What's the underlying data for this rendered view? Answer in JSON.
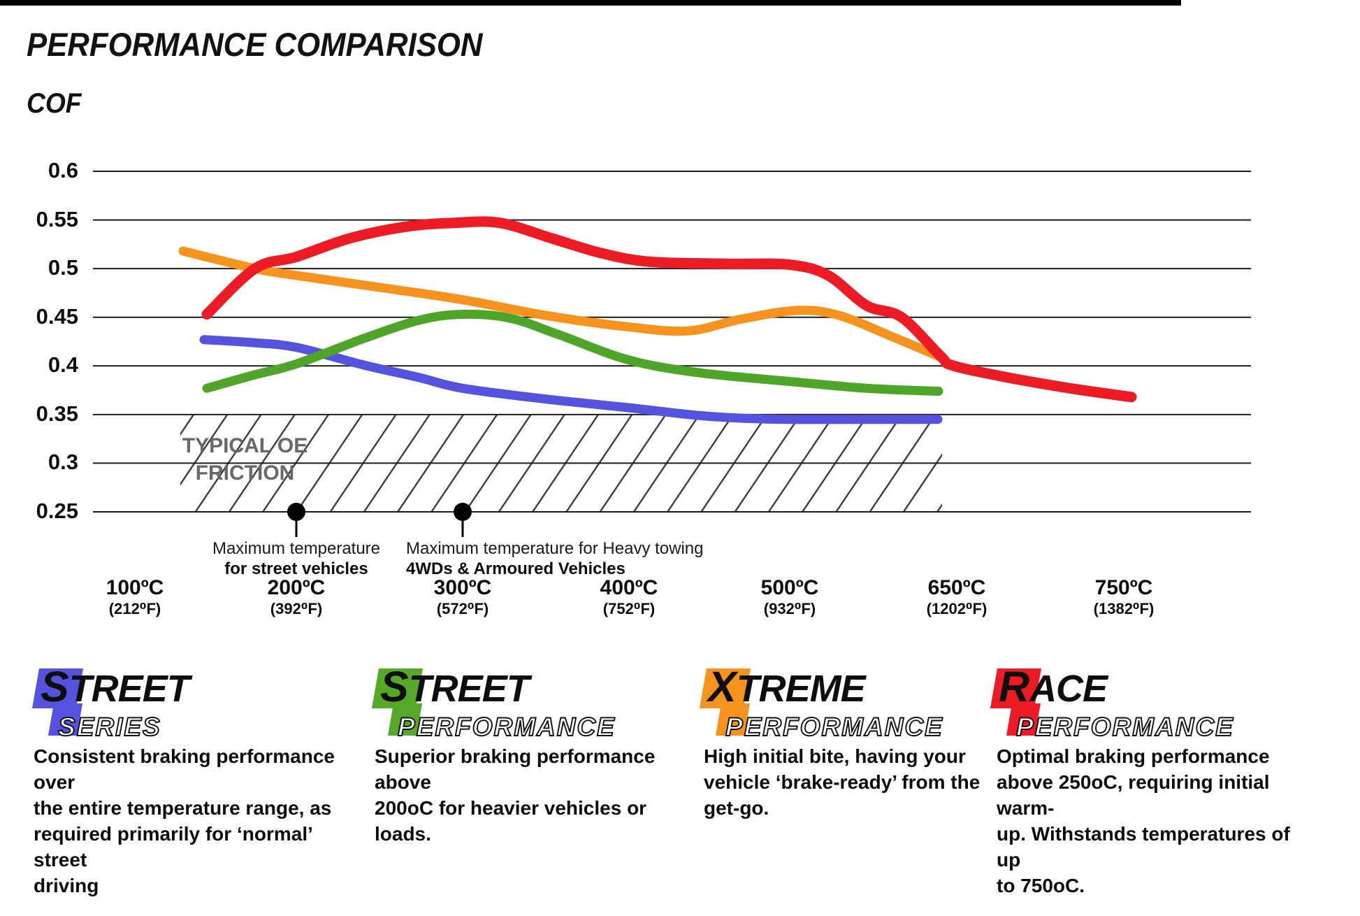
{
  "page": {
    "title": "PERFORMANCE COMPARISON",
    "axis_title": "COF"
  },
  "chart_data": {
    "type": "line",
    "title": "PERFORMANCE COMPARISON",
    "ylabel": "COF",
    "xlabel": "",
    "ylim": [
      0.25,
      0.6
    ],
    "grid": "horizontal",
    "y_ticks": [
      "0.6",
      "0.55",
      "0.5",
      "0.45",
      "0.4",
      "0.35",
      "0.3",
      "0.25"
    ],
    "x_ticks": [
      {
        "label": "100ºC",
        "sub": "(212⁰F)"
      },
      {
        "label": "200ºC",
        "sub": "(392⁰F)"
      },
      {
        "label": "300ºC",
        "sub": "(572⁰F)"
      },
      {
        "label": "400ºC",
        "sub": "(752⁰F)"
      },
      {
        "label": "500ºC",
        "sub": "(932⁰F)"
      },
      {
        "label": "650ºC",
        "sub": "(1202⁰F)"
      },
      {
        "label": "750ºC",
        "sub": "(1382⁰F)"
      }
    ],
    "series": [
      {
        "name": "Street Series",
        "color": "#5552dd",
        "stroke_width": 13,
        "points": [
          [
            292,
            0.427
          ],
          [
            360,
            0.424
          ],
          [
            424,
            0.419
          ],
          [
            520,
            0.401
          ],
          [
            600,
            0.388
          ],
          [
            662,
            0.377
          ],
          [
            780,
            0.366
          ],
          [
            900,
            0.357
          ],
          [
            1000,
            0.349
          ],
          [
            1070,
            0.346
          ],
          [
            1130,
            0.345
          ],
          [
            1250,
            0.345
          ],
          [
            1342,
            0.345
          ]
        ]
      },
      {
        "name": "Street Performance",
        "color": "#4fa52a",
        "stroke_width": 13,
        "points": [
          [
            296,
            0.377
          ],
          [
            360,
            0.39
          ],
          [
            424,
            0.402
          ],
          [
            520,
            0.428
          ],
          [
            600,
            0.447
          ],
          [
            662,
            0.453
          ],
          [
            730,
            0.449
          ],
          [
            800,
            0.432
          ],
          [
            900,
            0.406
          ],
          [
            1000,
            0.393
          ],
          [
            1130,
            0.384
          ],
          [
            1240,
            0.377
          ],
          [
            1343,
            0.374
          ]
        ]
      },
      {
        "name": "Xtreme Performance",
        "color": "#f6921e",
        "stroke_width": 13,
        "points": [
          [
            262,
            0.518
          ],
          [
            365,
            0.5
          ],
          [
            424,
            0.493
          ],
          [
            550,
            0.48
          ],
          [
            662,
            0.468
          ],
          [
            780,
            0.452
          ],
          [
            900,
            0.44
          ],
          [
            985,
            0.436
          ],
          [
            1060,
            0.448
          ],
          [
            1140,
            0.457
          ],
          [
            1200,
            0.452
          ],
          [
            1280,
            0.429
          ],
          [
            1346,
            0.409
          ]
        ]
      },
      {
        "name": "Race Performance",
        "color": "#ed1c24",
        "stroke_width": 15,
        "points": [
          [
            296,
            0.453
          ],
          [
            365,
            0.5
          ],
          [
            424,
            0.512
          ],
          [
            500,
            0.531
          ],
          [
            580,
            0.543
          ],
          [
            650,
            0.547
          ],
          [
            715,
            0.547
          ],
          [
            790,
            0.531
          ],
          [
            860,
            0.516
          ],
          [
            930,
            0.507
          ],
          [
            1040,
            0.505
          ],
          [
            1130,
            0.504
          ],
          [
            1185,
            0.493
          ],
          [
            1240,
            0.462
          ],
          [
            1290,
            0.45
          ],
          [
            1346,
            0.41
          ],
          [
            1365,
            0.4
          ],
          [
            1450,
            0.387
          ],
          [
            1540,
            0.376
          ],
          [
            1619,
            0.368
          ]
        ]
      }
    ],
    "oe_band": {
      "label": "TYPICAL OE\nFRICTION",
      "value_from": 0.25,
      "value_to": 0.35
    },
    "annotations": [
      {
        "line1": "Maximum temperature",
        "line2": "for street vehicles",
        "at_tick": "200ºC"
      },
      {
        "line1": "Maximum temperature for Heavy towing",
        "line2": "4WDs & Armoured Vehicles",
        "at_tick": "300ºC"
      }
    ]
  },
  "legend": [
    {
      "word_first": "S",
      "word_rest": "TREET",
      "sub_first": "S",
      "sub_rest": "ERIES",
      "color": "#5552dd",
      "desc": "Consistent braking performance over\nthe entire temperature range, as\nrequired primarily for ‘normal’ street\ndriving"
    },
    {
      "word_first": "S",
      "word_rest": "TREET",
      "sub_first": "P",
      "sub_rest": "ERFORMANCE",
      "color": "#56a829",
      "desc": "Superior braking performance above\n200oC for heavier vehicles or loads."
    },
    {
      "word_first": "X",
      "word_rest": "TREME",
      "sub_first": "P",
      "sub_rest": "ERFORMANCE",
      "color": "#f6921e",
      "desc": "High initial bite, having your\nvehicle ‘brake-ready’ from the\nget-go."
    },
    {
      "word_first": "R",
      "word_rest": "ACE",
      "sub_first": "P",
      "sub_rest": "ERFORMANCE",
      "color": "#ed1c24",
      "desc": "Optimal braking performance\nabove 250oC, requiring initial warm-\nup. Withstands temperatures of up\nto 750oC."
    }
  ]
}
